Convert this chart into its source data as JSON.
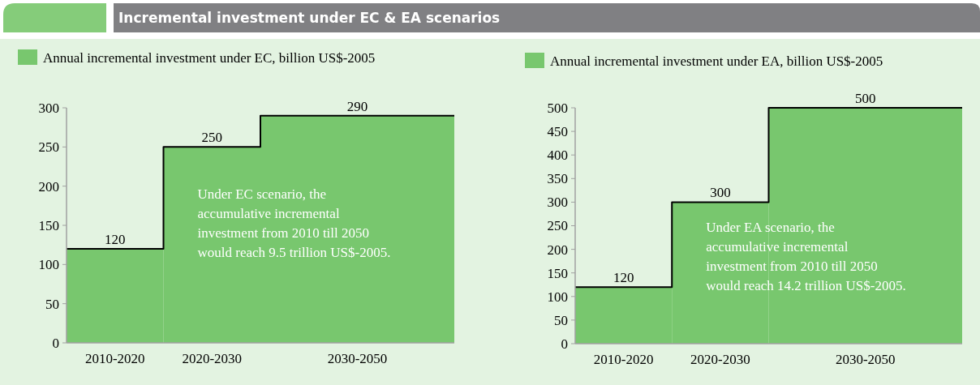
{
  "chart_data": [
    {
      "type": "bar",
      "title": "Incremental investment under EC & EA scenarios",
      "categories": [
        "2010-2020",
        "2020-2030",
        "2030-2050"
      ],
      "ylim": [
        0,
        300
      ],
      "yticks": [
        0,
        50,
        100,
        150,
        200,
        250,
        300
      ],
      "series": [
        {
          "name": "Annual incremental investment under EC, billion US$-2005",
          "color": "#78c76e",
          "values": [
            120,
            250,
            290
          ]
        }
      ],
      "data_labels": true,
      "legend": "top left",
      "grid": false,
      "annotations": [
        "Under EC scenario, the\naccumulative incremental\ninvestment from 2010 till 2050\nwould reach 9.5 trillion US$-2005."
      ]
    },
    {
      "type": "bar",
      "categories": [
        "2010-2020",
        "2020-2030",
        "2030-2050"
      ],
      "ylim": [
        0,
        500
      ],
      "yticks": [
        0,
        50,
        100,
        150,
        200,
        250,
        300,
        350,
        400,
        450,
        500
      ],
      "series": [
        {
          "name": "Annual incremental investment under EA,  billion US$-2005",
          "color": "#78c76e",
          "values": [
            120,
            300,
            500
          ]
        }
      ],
      "data_labels": true,
      "legend": "top left",
      "grid": false,
      "annotations": [
        "Under EA scenario, the\naccumulative incremental\ninvestment from 2010 till 2050\nwould reach 14.2 trillion US$-2005."
      ]
    }
  ]
}
